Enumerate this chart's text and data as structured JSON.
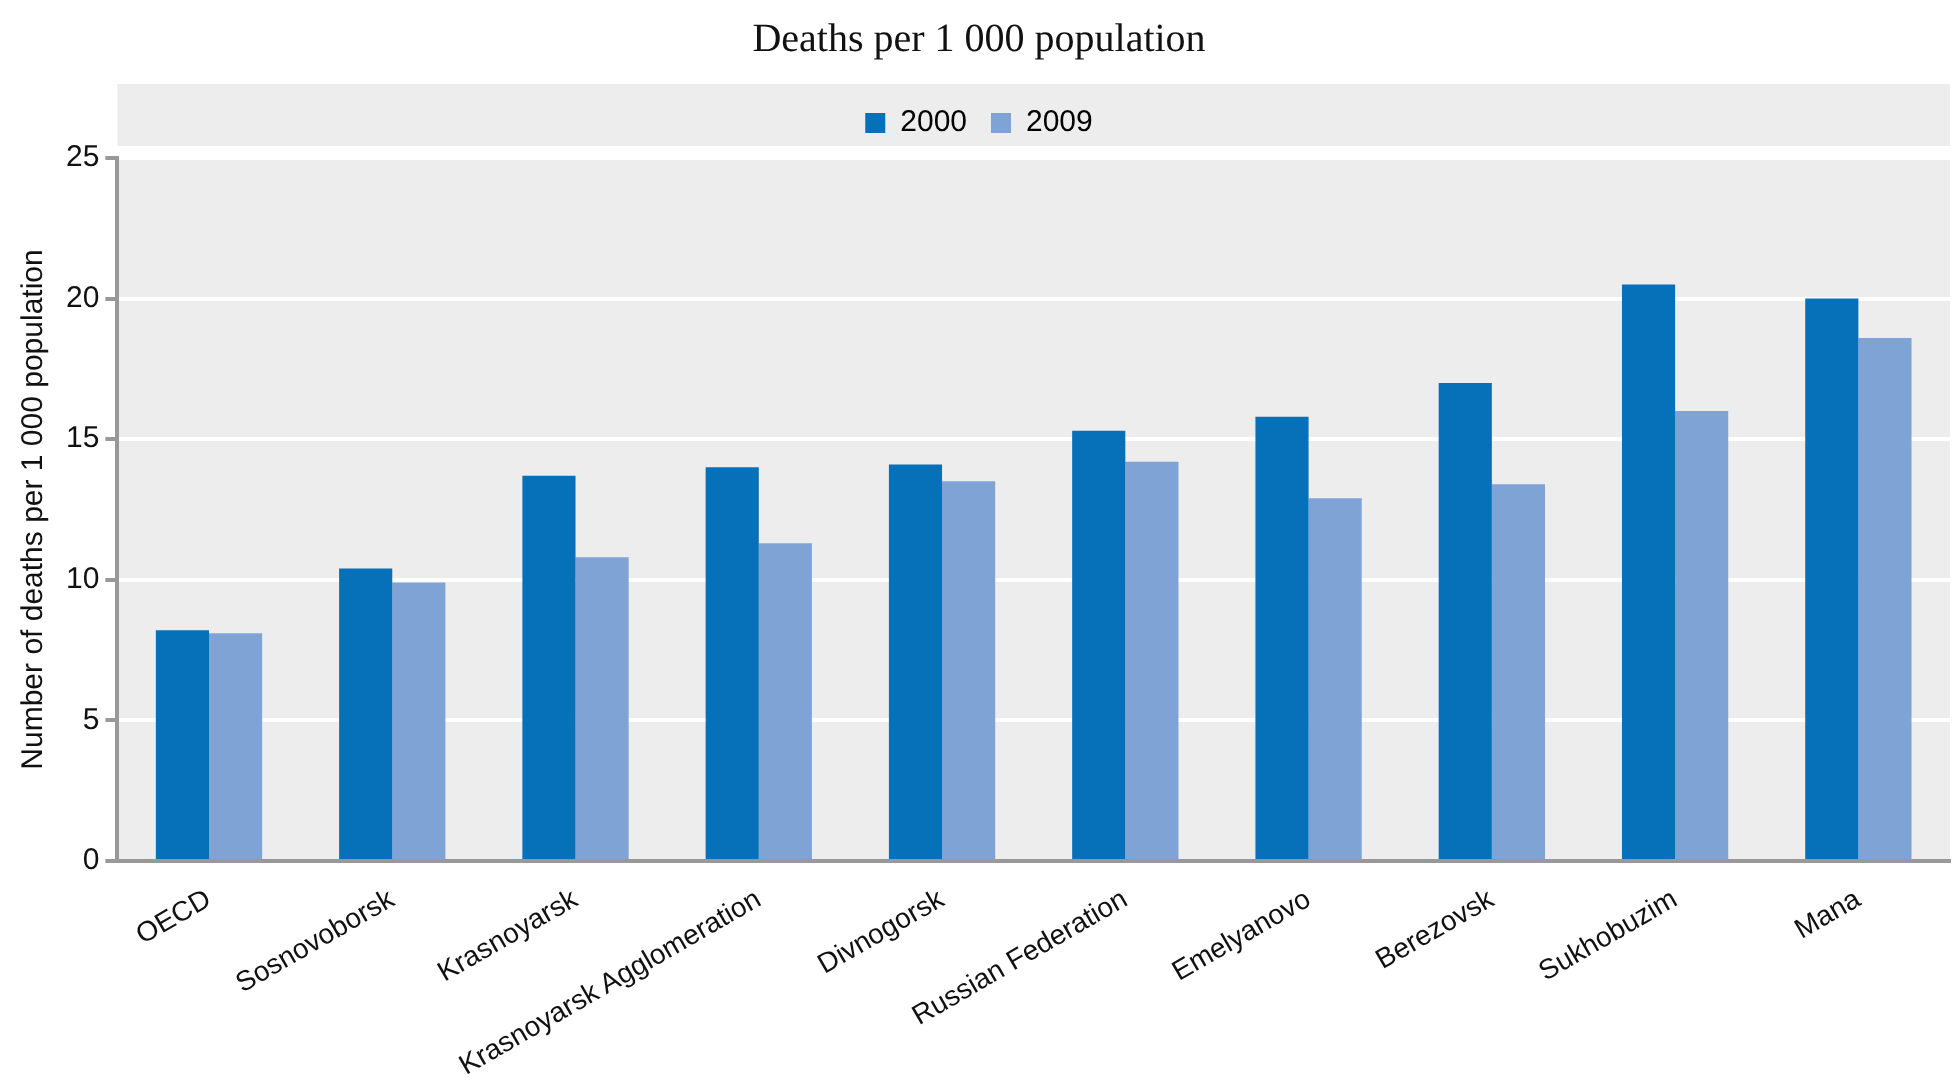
{
  "chart_data": {
    "type": "bar",
    "title": "Deaths per 1 000 population",
    "ylabel": "Number of deaths per 1 000 population",
    "categories": [
      "OECD",
      "Sosnovoborsk",
      "Krasnoyarsk",
      "Krasnoyarsk Agglomeration",
      "Divnogorsk",
      "Russian Federation",
      "Emelyanovo",
      "Berezovsk",
      "Sukhobuzim",
      "Mana"
    ],
    "series": [
      {
        "name": "2000",
        "color": "#0670b8",
        "values": [
          8.2,
          10.4,
          13.7,
          14.0,
          14.1,
          15.3,
          15.8,
          17.0,
          20.5,
          20.0
        ]
      },
      {
        "name": "2009",
        "color": "#7fa3d4",
        "values": [
          8.1,
          9.9,
          10.8,
          11.3,
          13.5,
          14.2,
          12.9,
          13.4,
          16.0,
          18.6
        ]
      }
    ],
    "ylim": [
      0,
      25
    ],
    "yticks": [
      0,
      5,
      10,
      15,
      20,
      25
    ],
    "grid": "y",
    "legend": "top"
  }
}
